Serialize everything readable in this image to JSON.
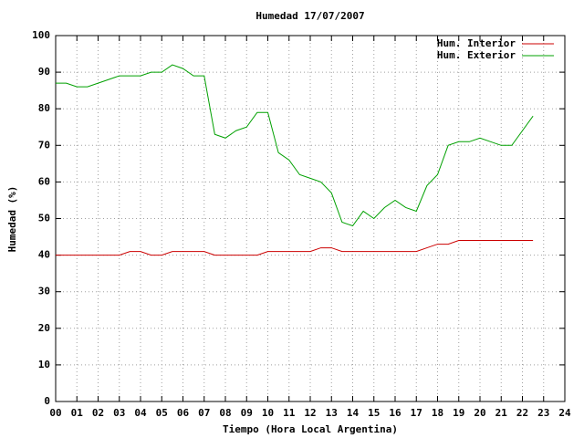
{
  "chart_data": {
    "type": "line",
    "title": "Humedad 17/07/2007",
    "x_label": "Tiempo (Hora Local Argentina)",
    "y_label": "Humedad (%)",
    "x": [
      0,
      0.5,
      1,
      1.5,
      2,
      2.5,
      3,
      3.5,
      4,
      4.5,
      5,
      5.5,
      6,
      6.5,
      7,
      7.5,
      8,
      8.5,
      9,
      9.5,
      10,
      10.5,
      11,
      11.5,
      12,
      12.5,
      13,
      13.5,
      14,
      14.5,
      15,
      15.5,
      16,
      16.5,
      17,
      17.5,
      18,
      18.5,
      19,
      19.5,
      20,
      20.5,
      21,
      21.5,
      22,
      22.5
    ],
    "series": [
      {
        "name": "Hum. Interior",
        "color": "#cc0000",
        "values": [
          40,
          40,
          40,
          40,
          40,
          40,
          40,
          41,
          41,
          40,
          40,
          41,
          41,
          41,
          41,
          40,
          40,
          40,
          40,
          40,
          41,
          41,
          41,
          41,
          41,
          42,
          42,
          41,
          41,
          41,
          41,
          41,
          41,
          41,
          41,
          42,
          43,
          43,
          44,
          44,
          44,
          44,
          44,
          44,
          44,
          44
        ]
      },
      {
        "name": "Hum. Exterior",
        "color": "#00a000",
        "values": [
          87,
          87,
          86,
          86,
          87,
          88,
          89,
          89,
          89,
          90,
          90,
          92,
          91,
          89,
          89,
          73,
          72,
          74,
          75,
          79,
          79,
          68,
          66,
          62,
          61,
          60,
          57,
          49,
          48,
          52,
          50,
          53,
          55,
          53,
          52,
          59,
          62,
          70,
          71,
          71,
          72,
          71,
          70,
          70,
          74,
          78
        ]
      }
    ],
    "xlim": [
      0,
      24
    ],
    "xticks": [
      {
        "value": 0,
        "label": "00"
      },
      {
        "value": 1,
        "label": "01"
      },
      {
        "value": 2,
        "label": "02"
      },
      {
        "value": 3,
        "label": "03"
      },
      {
        "value": 4,
        "label": "04"
      },
      {
        "value": 5,
        "label": "05"
      },
      {
        "value": 6,
        "label": "06"
      },
      {
        "value": 7,
        "label": "07"
      },
      {
        "value": 8,
        "label": "08"
      },
      {
        "value": 9,
        "label": "09"
      },
      10,
      11,
      12,
      13,
      14,
      15,
      16,
      17,
      18,
      19,
      20,
      21,
      22,
      23,
      24
    ],
    "ylim": [
      0,
      100
    ],
    "yticks": [
      0,
      10,
      20,
      30,
      40,
      50,
      60,
      70,
      80,
      90,
      100
    ],
    "grid": true,
    "legend": "top-right"
  }
}
